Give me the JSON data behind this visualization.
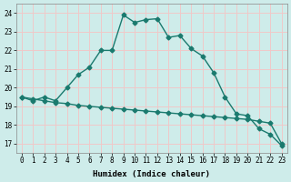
{
  "title": "",
  "xlabel": "Humidex (Indice chaleur)",
  "ylabel": "",
  "background_color": "#ceecea",
  "grid_color": "#f0c8c8",
  "line_color": "#1a7a6e",
  "x_values": [
    0,
    1,
    2,
    3,
    4,
    5,
    6,
    7,
    8,
    9,
    10,
    11,
    12,
    13,
    14,
    15,
    16,
    17,
    18,
    19,
    20,
    21,
    22,
    23
  ],
  "series1": [
    19.5,
    19.3,
    19.5,
    19.3,
    20.0,
    20.7,
    21.1,
    22.0,
    22.0,
    23.9,
    23.5,
    23.65,
    23.7,
    22.7,
    22.8,
    22.1,
    21.7,
    20.8,
    19.5,
    18.6,
    18.5,
    17.8,
    17.5,
    16.9
  ],
  "series2": [
    19.5,
    19.4,
    19.3,
    19.2,
    19.15,
    19.05,
    19.0,
    18.95,
    18.9,
    18.85,
    18.8,
    18.75,
    18.7,
    18.65,
    18.6,
    18.55,
    18.5,
    18.45,
    18.4,
    18.35,
    18.3,
    18.2,
    18.1,
    17.0
  ],
  "ylim": [
    16.5,
    24.5
  ],
  "yticks": [
    17,
    18,
    19,
    20,
    21,
    22,
    23,
    24
  ],
  "xlim": [
    -0.5,
    23.5
  ],
  "xticks": [
    0,
    1,
    2,
    3,
    4,
    5,
    6,
    7,
    8,
    9,
    10,
    11,
    12,
    13,
    14,
    15,
    16,
    17,
    18,
    19,
    20,
    21,
    22,
    23
  ],
  "marker": "D",
  "markersize": 2.5,
  "linewidth": 1.0,
  "label_fontsize": 6.5,
  "tick_fontsize": 5.5
}
